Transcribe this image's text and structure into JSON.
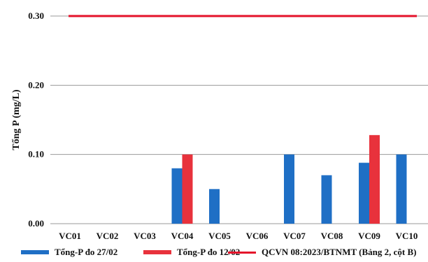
{
  "chart_data": {
    "type": "bar",
    "ylabel": "Tổng P (mg/L)",
    "xlabel": "",
    "ylim": [
      0,
      0.3
    ],
    "yticks": [
      "0.00",
      "0.10",
      "0.20",
      "0.30"
    ],
    "grid": true,
    "legend_position": "bottom",
    "categories": [
      "VC01",
      "VC02",
      "VC03",
      "VC04",
      "VC05",
      "VC06",
      "VC07",
      "VC08",
      "VC09",
      "VC10"
    ],
    "series": [
      {
        "name": "Tổng-P đo 27/02",
        "color": "#1f6fc5",
        "values": [
          0,
          0,
          0,
          0.08,
          0.05,
          0,
          0.1,
          0.07,
          0.088,
          0.1
        ]
      },
      {
        "name": "Tổng-P đo 12/02",
        "color": "#e8323c",
        "values": [
          0,
          0,
          0,
          0.1,
          0,
          0,
          0,
          0,
          0.128,
          0
        ]
      }
    ],
    "reference_line": {
      "name": "QCVN 08:2023/BTNMT (Bảng 2, cột B)",
      "value": 0.3,
      "color": "#e4122a"
    }
  }
}
